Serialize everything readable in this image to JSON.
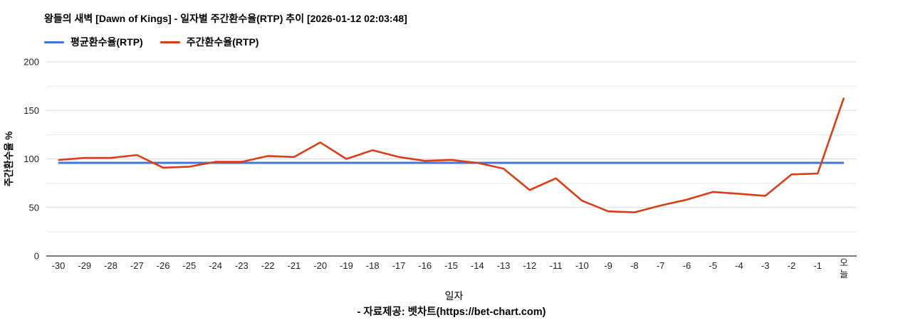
{
  "header": {
    "title": "왕들의 새벽 [Dawn of Kings] - 일자별 주간환수율(RTP) 추이 [2026-01-12 02:03:48]"
  },
  "legend": [
    {
      "key": "avg",
      "label": "평균환수율(RTP)",
      "color": "#4376d8"
    },
    {
      "key": "weekly",
      "label": "주간환수율(RTP)",
      "color": "#dc3c16"
    }
  ],
  "footer": {
    "text": "- 자료제공: 벳차트(https://bet-chart.com)"
  },
  "chart_data": {
    "type": "line",
    "title": "왕들의 새벽 [Dawn of Kings] - 일자별 주간환수율(RTP) 추이 [2026-01-12 02:03:48]",
    "xlabel": "일자",
    "ylabel": "주간환수율 %",
    "ylim": [
      0,
      200
    ],
    "y_tick_step": 50,
    "y_minor_grid_step": 25,
    "grid": true,
    "legend_position": "top",
    "categories": [
      "-30",
      "-29",
      "-28",
      "-27",
      "-26",
      "-25",
      "-24",
      "-23",
      "-22",
      "-21",
      "-20",
      "-19",
      "-18",
      "-17",
      "-16",
      "-15",
      "-14",
      "-13",
      "-12",
      "-11",
      "-10",
      "-9",
      "-8",
      "-7",
      "-6",
      "-5",
      "-4",
      "-3",
      "-2",
      "-1",
      "오늘"
    ],
    "series": [
      {
        "key": "avg",
        "name": "평균환수율(RTP)",
        "color": "#4376d8",
        "values": [
          96,
          96,
          96,
          96,
          96,
          96,
          96,
          96,
          96,
          96,
          96,
          96,
          96,
          96,
          96,
          96,
          96,
          96,
          96,
          96,
          96,
          96,
          96,
          96,
          96,
          96,
          96,
          96,
          96,
          96,
          96
        ]
      },
      {
        "key": "weekly",
        "name": "주간환수율(RTP)",
        "color": "#dc3c16",
        "values": [
          99,
          101,
          101,
          104,
          91,
          92,
          97,
          97,
          103,
          102,
          117,
          100,
          109,
          102,
          98,
          99,
          96,
          90,
          68,
          80,
          57,
          46,
          45,
          52,
          58,
          66,
          64,
          62,
          84,
          85,
          163
        ]
      }
    ],
    "colors": {
      "grid_major": "#d9d9d9",
      "grid_minor": "#e8e8e8",
      "axis_line": "#4a4a4a",
      "tick_text": "#222222"
    }
  }
}
